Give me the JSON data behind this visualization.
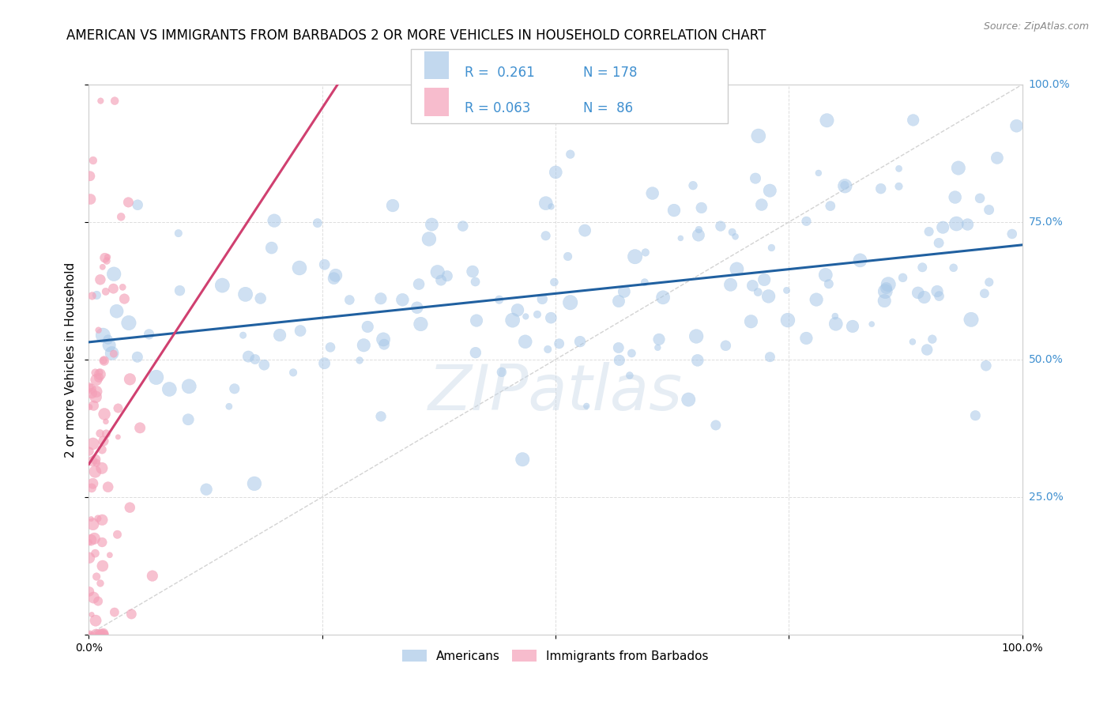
{
  "title": "AMERICAN VS IMMIGRANTS FROM BARBADOS 2 OR MORE VEHICLES IN HOUSEHOLD CORRELATION CHART",
  "source": "Source: ZipAtlas.com",
  "ylabel": "2 or more Vehicles in Household",
  "xlim": [
    0,
    1.0
  ],
  "ylim": [
    0,
    1.0
  ],
  "ytick_positions": [
    0.0,
    0.25,
    0.5,
    0.75,
    1.0
  ],
  "xtick_positions": [
    0.0,
    0.25,
    0.5,
    0.75,
    1.0
  ],
  "americans_R": 0.261,
  "americans_N": 178,
  "barbados_R": 0.063,
  "barbados_N": 86,
  "blue_color": "#a8c8e8",
  "pink_color": "#f4a0b8",
  "blue_line_color": "#2060a0",
  "pink_line_color": "#d04070",
  "diagonal_color": "#c8c8c8",
  "legend_label_1": "Americans",
  "legend_label_2": "Immigrants from Barbados",
  "title_fontsize": 12,
  "axis_label_fontsize": 11,
  "tick_label_fontsize": 10,
  "watermark": "ZIPatlas",
  "right_tick_color": "#4090d0"
}
